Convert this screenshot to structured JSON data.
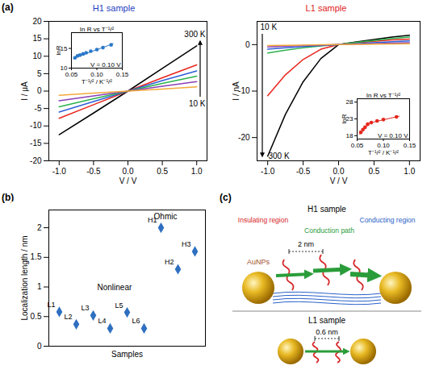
{
  "panel_labels": [
    "(a)",
    "(b)",
    "(c)"
  ],
  "chart_data": [
    {
      "type": "line",
      "title": "H1 sample",
      "x_label": "V / V",
      "y_label": "I / μA",
      "xlim": [
        -1.15,
        1.15
      ],
      "xticks": [
        {
          "value": -1,
          "label": "-1.0"
        },
        {
          "value": -0.5,
          "label": "-0.5"
        },
        {
          "value": 0,
          "label": "0.0"
        },
        {
          "value": 0.5,
          "label": "0.5"
        },
        {
          "value": 1,
          "label": "1.0"
        }
      ],
      "ylim": [
        -20,
        20
      ],
      "yticks": [
        -20,
        -15,
        -10,
        -5,
        0,
        5,
        10,
        15,
        20
      ],
      "x": [
        -1,
        -0.5,
        0,
        0.5,
        1
      ],
      "series": [
        {
          "color": "#000000",
          "values": [
            -12.5,
            -6.3,
            0,
            6.5,
            13
          ]
        },
        {
          "color": "#e8251d",
          "values": [
            -7.8,
            -3.9,
            0,
            3.8,
            7.5
          ]
        },
        {
          "color": "#2f5fd6",
          "values": [
            -6,
            -3,
            0,
            3,
            5.8
          ]
        },
        {
          "color": "#2bb24c",
          "values": [
            -4.5,
            -2.2,
            0,
            2.2,
            4.3
          ]
        },
        {
          "color": "#8a3fb5",
          "values": [
            -2.8,
            -1.4,
            0,
            1.4,
            2.7
          ]
        },
        {
          "color": "#f2a93b",
          "values": [
            -1.2,
            -0.6,
            0,
            0.6,
            1.2
          ]
        }
      ],
      "annotations": [
        "300 K",
        "10 K"
      ]
    },
    {
      "type": "scatter",
      "title": "In R vs T⁻¹/²",
      "x_label": "T⁻¹/² / K⁻¹/²",
      "y_label": "lnR",
      "xlim": [
        0.05,
        0.15
      ],
      "xticks": [
        {
          "value": 0.05,
          "label": "0.05"
        },
        {
          "value": 0.1,
          "label": "0.10"
        },
        {
          "value": 0.15,
          "label": "0.15"
        }
      ],
      "ylim": [
        10,
        19
      ],
      "yticks": [
        10,
        15
      ],
      "series": [
        {
          "type": "scatter",
          "marker": "circle",
          "color": "#2a78c8",
          "x": [
            0.057,
            0.062,
            0.067,
            0.073,
            0.079,
            0.088,
            0.1,
            0.112,
            0.128
          ],
          "values": [
            12.6,
            13.1,
            13.3,
            13.6,
            13.9,
            14.3,
            14.7,
            15.2,
            15.9
          ]
        },
        {
          "type": "line",
          "line_style": "solid",
          "color": "#2a78c8",
          "x": [
            0.054,
            0.132
          ],
          "values": [
            12.5,
            16.2
          ]
        }
      ],
      "annotations": [
        "V = 0.10 V"
      ]
    },
    {
      "type": "line",
      "title": "L1 sample",
      "x_label": "V / V",
      "y_label": "I / nA",
      "xlim": [
        -1.15,
        1.15
      ],
      "xticks": [
        {
          "value": -1,
          "label": "-1.0"
        },
        {
          "value": -0.5,
          "label": "-0.5"
        },
        {
          "value": 0,
          "label": "0.0"
        },
        {
          "value": 0.5,
          "label": "0.5"
        },
        {
          "value": 1,
          "label": "1.0"
        }
      ],
      "ylim": [
        -25,
        5
      ],
      "yticks": [
        -20,
        -10,
        0
      ],
      "x": [
        -1,
        -0.75,
        -0.5,
        -0.25,
        0,
        0.25,
        0.5,
        0.75,
        1
      ],
      "series": [
        {
          "color": "#000000",
          "values": [
            -24,
            -15,
            -8,
            -3,
            0,
            0.6,
            1.1,
            1.6,
            2
          ]
        },
        {
          "color": "#e8251d",
          "values": [
            -11,
            -6.5,
            -3.2,
            -1,
            0,
            0.4,
            0.7,
            1,
            1.2
          ]
        },
        {
          "color": "#2bb24c",
          "values": [
            -1.8,
            -1.2,
            -0.7,
            -0.3,
            0,
            0.5,
            0.9,
            1.3,
            1.6
          ]
        },
        {
          "color": "#2f5fd6",
          "values": [
            -1,
            -0.7,
            -0.4,
            -0.2,
            0,
            0.2,
            0.4,
            0.6,
            0.8
          ]
        },
        {
          "color": "#8a3fb5",
          "values": [
            -0.5,
            -0.35,
            -0.2,
            -0.1,
            0,
            0.1,
            0.2,
            0.3,
            0.4
          ]
        },
        {
          "color": "#f2a93b",
          "values": [
            -0.2,
            -0.15,
            -0.1,
            -0.05,
            0,
            0.05,
            0.1,
            0.15,
            0.2
          ]
        }
      ],
      "annotations": [
        "10 K",
        "300 K"
      ]
    },
    {
      "type": "scatter",
      "title": "In R vs T⁻¹/²",
      "x_label": "T⁻¹/² / K⁻¹/²",
      "y_label": "lnR",
      "xlim": [
        0.05,
        0.15
      ],
      "xticks": [
        {
          "value": 0.05,
          "label": "0.05"
        },
        {
          "value": 0.1,
          "label": "0.10"
        },
        {
          "value": 0.15,
          "label": "0.15"
        }
      ],
      "ylim": [
        17,
        29
      ],
      "yticks": [
        18,
        23,
        28
      ],
      "series": [
        {
          "type": "scatter",
          "marker": "circle",
          "color": "#e4281e",
          "x": [
            0.057,
            0.061,
            0.065,
            0.07,
            0.077,
            0.088,
            0.1,
            0.125
          ],
          "values": [
            19.0,
            19.8,
            20.5,
            21.4,
            21.9,
            22.4,
            22.8,
            23.6
          ]
        },
        {
          "type": "line",
          "line_style": "solid",
          "color": "#e4281e",
          "x": [
            0.055,
            0.074
          ],
          "values": [
            18.4,
            21.9
          ]
        },
        {
          "type": "line",
          "line_style": "solid",
          "color": "#e4281e",
          "x": [
            0.068,
            0.13
          ],
          "values": [
            21.6,
            23.8
          ]
        }
      ],
      "annotations": [
        "V = 0.10 V"
      ]
    },
    {
      "type": "scatter",
      "x_label": "Samples",
      "y_label": "Localization length / nm",
      "categories": [
        "L1",
        "L2",
        "L3",
        "L4",
        "L5",
        "L6",
        "H1",
        "H2",
        "H3"
      ],
      "values": [
        0.58,
        0.37,
        0.52,
        0.3,
        0.57,
        0.3,
        2.0,
        1.3,
        1.6
      ],
      "color": "#2e6fc0",
      "marker": "diamond",
      "ylim": [
        0,
        2.3
      ],
      "yticks": [
        0,
        0.5,
        1,
        1.5,
        2
      ],
      "tick_labels": "y",
      "annotations": [
        "Nonlinear",
        "Ohmic"
      ]
    }
  ],
  "diagram": {
    "h1_label": "H1 sample",
    "insulating": "Insulating region",
    "conduction": "Conduction path",
    "conducting": "Conducting region",
    "particles": "AuNPs",
    "h1_distance": "2 nm",
    "l1_label": "L1 sample",
    "l1_distance": "0.6 nm"
  }
}
